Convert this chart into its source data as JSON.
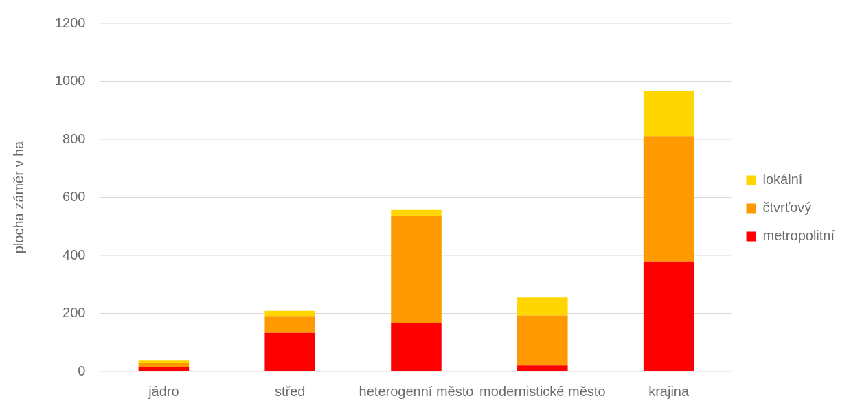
{
  "chart_data": {
    "type": "bar",
    "stacked": true,
    "ylabel": "plocha záměr v ha",
    "categories": [
      "jádro",
      "střed",
      "heterogenní město",
      "modernistické město",
      "krajina"
    ],
    "series": [
      {
        "name": "metropolitní",
        "color": "#ff0000",
        "values": [
          15,
          133,
          167,
          21,
          379
        ]
      },
      {
        "name": "čtvrťový",
        "color": "#ff9900",
        "values": [
          16,
          58,
          368,
          172,
          432
        ]
      },
      {
        "name": "lokální",
        "color": "#ffd600",
        "values": [
          6,
          18,
          22,
          62,
          155
        ]
      }
    ],
    "ylim": [
      0,
      1200
    ],
    "yticks": [
      0,
      200,
      400,
      600,
      800,
      1000,
      1200
    ],
    "grid": "y",
    "legend": "right"
  }
}
